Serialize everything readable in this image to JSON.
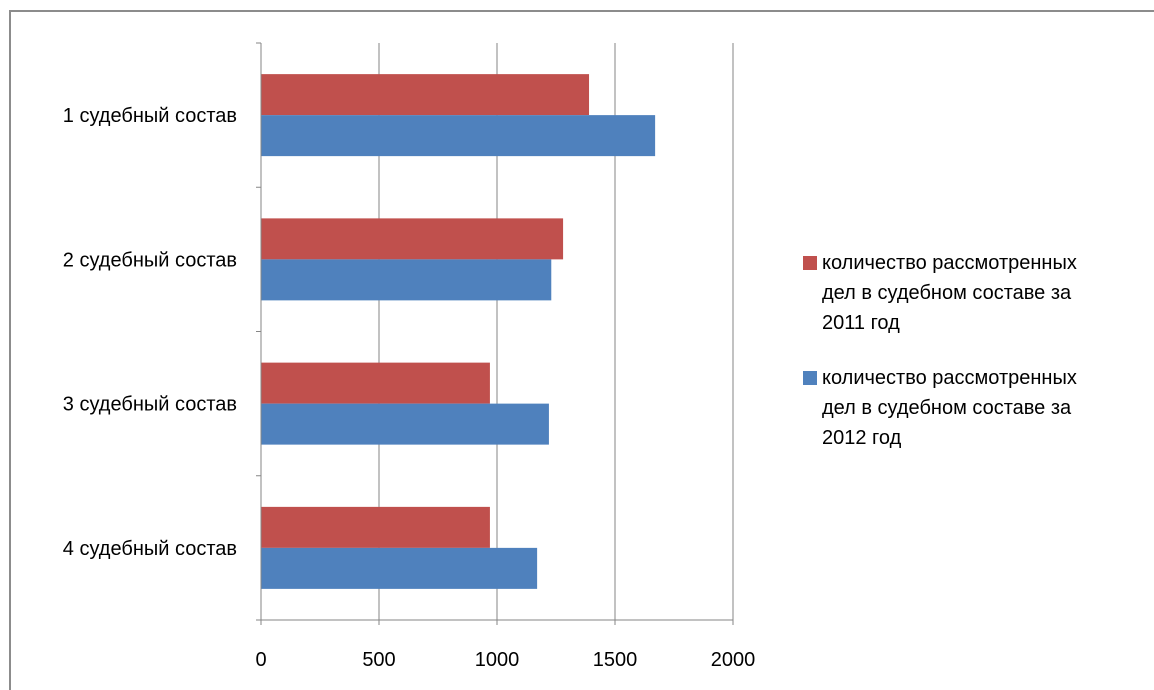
{
  "chart_data": {
    "type": "bar",
    "orientation": "horizontal",
    "categories": [
      "1 судебный состав",
      "2 судебный состав",
      "3 судебный состав",
      "4 судебный состав"
    ],
    "series": [
      {
        "name": "количество рассмотренных дел в судебном составе за 2011 год",
        "legend_lines": [
          "количество рассмотренных",
          "дел в судебном составе за",
          "2011 год"
        ],
        "color": "#c0504d",
        "values": [
          1390,
          1280,
          970,
          970
        ]
      },
      {
        "name": "количество рассмотренных дел в судебном составе за 2012 год",
        "legend_lines": [
          "количество рассмотренных",
          "дел в судебном составе за",
          "2012 год"
        ],
        "color": "#4f81bd",
        "values": [
          1670,
          1230,
          1220,
          1170
        ]
      }
    ],
    "xlim": [
      0,
      2000
    ],
    "xticks": [
      "0",
      "500",
      "1000",
      "1500",
      "2000"
    ],
    "grid": true,
    "legend_position": "right",
    "title": "",
    "xlabel": "",
    "ylabel": ""
  }
}
